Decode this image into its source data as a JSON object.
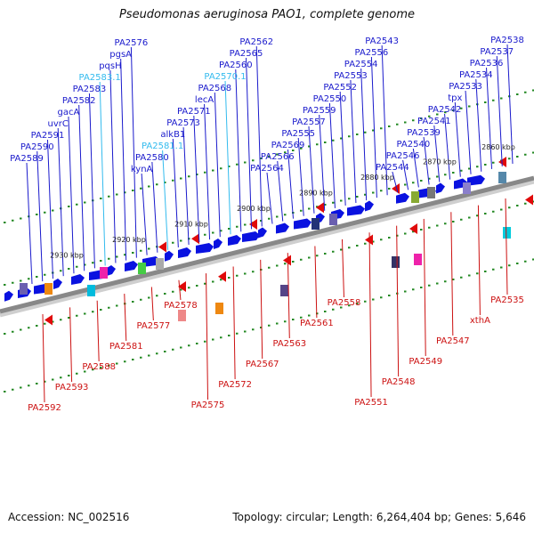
{
  "title": "Pseudomonas aeruginosa PAO1, complete genome",
  "footer": {
    "accession": "Accession: NC_002516",
    "stats": "Topology: circular; Length: 6,264,404 bp; Genes: 5,646"
  },
  "colors": {
    "forward_label": "#1a1acc",
    "forward_label_alt": "#33bbee",
    "reverse_label": "#cc1111",
    "forward_gene": "#0a12e0",
    "reverse_gene": "#e00a0a",
    "backbone": "#888888",
    "tick": "#228822"
  },
  "ticks": [
    "2860 kbp",
    "2870 kbp",
    "2880 kbp",
    "2890 kbp",
    "2900 kbp",
    "2910 kbp",
    "2920 kbp",
    "2930 kbp"
  ],
  "forward_labels": [
    {
      "text": "PA2538"
    },
    {
      "text": "PA2537"
    },
    {
      "text": "PA2536"
    },
    {
      "text": "PA2534"
    },
    {
      "text": "PA2533"
    },
    {
      "text": "tpx"
    },
    {
      "text": "PA2542"
    },
    {
      "text": "PA2541"
    },
    {
      "text": "PA2539"
    },
    {
      "text": "PA2540"
    },
    {
      "text": "PA2546"
    },
    {
      "text": "PA2544"
    },
    {
      "text": "PA2543"
    },
    {
      "text": "PA2556"
    },
    {
      "text": "PA2554"
    },
    {
      "text": "PA2553"
    },
    {
      "text": "PA2552"
    },
    {
      "text": "PA2550"
    },
    {
      "text": "PA2559"
    },
    {
      "text": "PA2557"
    },
    {
      "text": "PA2555"
    },
    {
      "text": "PA2569"
    },
    {
      "text": "PA2566"
    },
    {
      "text": "PA2564"
    },
    {
      "text": "PA2562"
    },
    {
      "text": "PA2565"
    },
    {
      "text": "PA2560"
    },
    {
      "text": "PA2570.1",
      "alt": true
    },
    {
      "text": "PA2568"
    },
    {
      "text": "lecA"
    },
    {
      "text": "PA2571"
    },
    {
      "text": "PA2573"
    },
    {
      "text": "alkB1"
    },
    {
      "text": "PA2581.1",
      "alt": true
    },
    {
      "text": "PA2580"
    },
    {
      "text": "kynA"
    },
    {
      "text": "PA2576"
    },
    {
      "text": "pgsA"
    },
    {
      "text": "pqsH"
    },
    {
      "text": "PA2583.1",
      "alt": true
    },
    {
      "text": "PA2583"
    },
    {
      "text": "PA2582"
    },
    {
      "text": "gacA"
    },
    {
      "text": "uvrC"
    },
    {
      "text": "PA2591"
    },
    {
      "text": "PA2590"
    },
    {
      "text": "PA2589"
    }
  ],
  "reverse_labels": [
    {
      "text": "PA2535"
    },
    {
      "text": "xthA"
    },
    {
      "text": "PA2547"
    },
    {
      "text": "PA2549"
    },
    {
      "text": "PA2548"
    },
    {
      "text": "PA2551"
    },
    {
      "text": "PA2558"
    },
    {
      "text": "PA2561"
    },
    {
      "text": "PA2563"
    },
    {
      "text": "PA2567"
    },
    {
      "text": "PA2572"
    },
    {
      "text": "PA2575"
    },
    {
      "text": "PA2578"
    },
    {
      "text": "PA2577"
    },
    {
      "text": "PA2581"
    },
    {
      "text": "PA2588"
    },
    {
      "text": "PA2593"
    },
    {
      "text": "PA2592"
    }
  ]
}
